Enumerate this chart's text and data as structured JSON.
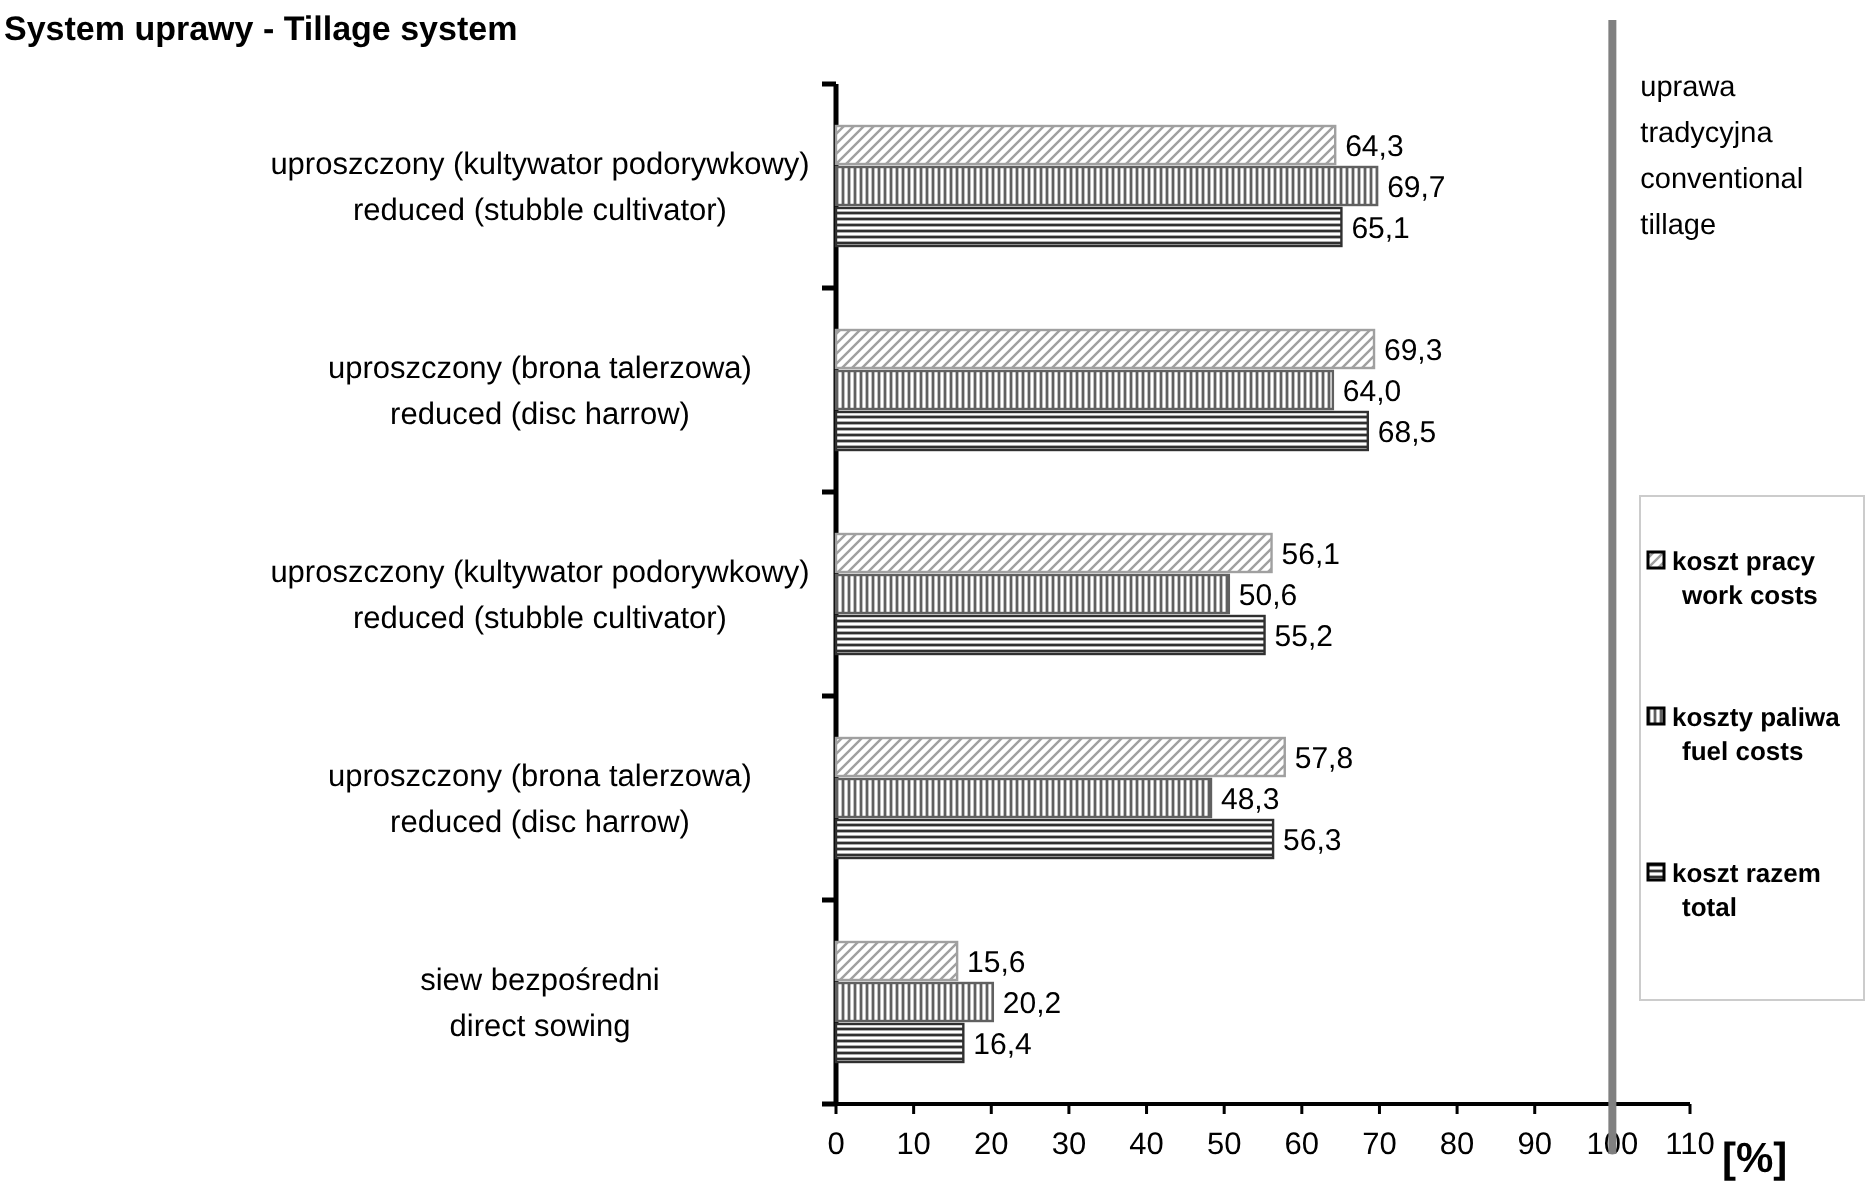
{
  "chart_data": {
    "type": "bar",
    "orientation": "horizontal",
    "title": "System uprawy - Tillage system",
    "xlabel": "[%]",
    "categories": [
      "uproszczony (kultywator podorywkowy)\nreduced (stubble cultivator)",
      "uproszczony (brona talerzowa)\nreduced (disc harrow)",
      "uproszczony (kultywator podorywkowy)\nreduced (stubble cultivator)",
      "uproszczony (brona talerzowa)\nreduced (disc harrow)",
      "siew bezpośredni\ndirect sowing"
    ],
    "series": [
      {
        "name": "koszt pracy\nwork costs",
        "color": "#a0a0a0",
        "values": [
          64.3,
          69.3,
          56.1,
          57.8,
          15.6
        ],
        "value_labels": [
          "64,3",
          "69,3",
          "56,1",
          "57,8",
          "15,6"
        ]
      },
      {
        "name": "koszty paliwa\nfuel costs",
        "color": "#606060",
        "values": [
          69.7,
          64.0,
          50.6,
          48.3,
          20.2
        ],
        "value_labels": [
          "69,7",
          "64,0",
          "50,6",
          "48,3",
          "20,2"
        ]
      },
      {
        "name": "koszt razem\ntotal",
        "color": "#303030",
        "values": [
          65.1,
          68.5,
          55.2,
          56.3,
          16.4
        ],
        "value_labels": [
          "65,1",
          "68,5",
          "55,2",
          "56,3",
          "16,4"
        ]
      }
    ],
    "xlim": [
      0,
      110
    ],
    "xticks": [
      0,
      10,
      20,
      30,
      40,
      50,
      60,
      70,
      80,
      90,
      100,
      110
    ],
    "ref_lines": [
      {
        "axis": "x",
        "value": 100,
        "label": "uprawa\ntradycyjna\nconventional\ntillage",
        "color": "#808080"
      }
    ],
    "legend": "right",
    "grid": false
  }
}
